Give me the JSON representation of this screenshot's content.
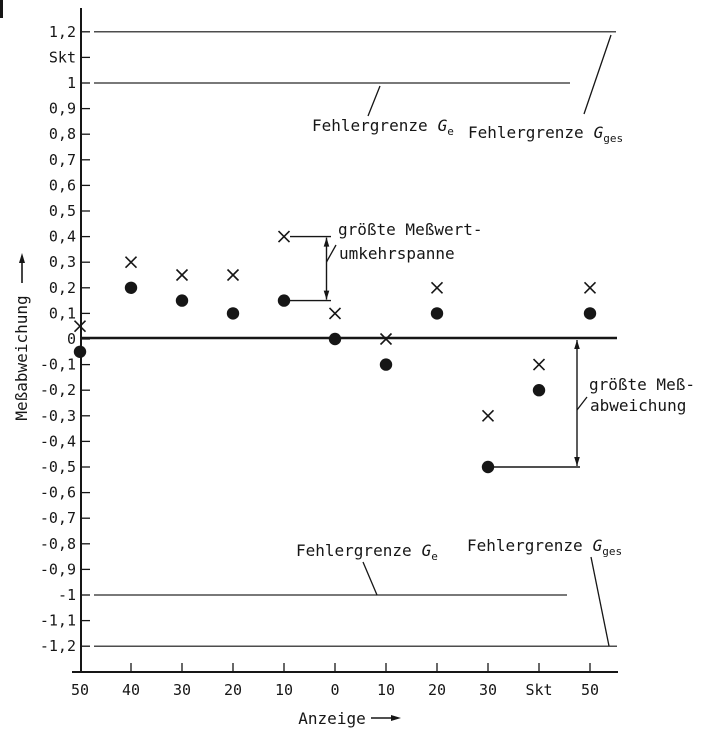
{
  "figure": {
    "background": "#ffffff",
    "ink": "#161616",
    "thin_line": "#4d4d4d"
  },
  "chart_data": {
    "type": "scatter",
    "title": "",
    "xlabel": "Anzeige",
    "ylabel": "Meßabweichung",
    "scale_unit": "Skt",
    "x_categories": [
      "50",
      "40",
      "30",
      "20",
      "10",
      "0",
      "10",
      "20",
      "30",
      "Skt",
      "50"
    ],
    "ylim": [
      -1.2,
      1.2
    ],
    "grid": false,
    "y_ticks": [
      {
        "v": 1.2,
        "label": "1,2"
      },
      {
        "v": 1.1,
        "label": "Skt"
      },
      {
        "v": 1.0,
        "label": "1"
      },
      {
        "v": 0.9,
        "label": "0,9"
      },
      {
        "v": 0.8,
        "label": "0,8"
      },
      {
        "v": 0.7,
        "label": "0,7"
      },
      {
        "v": 0.6,
        "label": "0,6"
      },
      {
        "v": 0.5,
        "label": "0,5"
      },
      {
        "v": 0.4,
        "label": "0,4"
      },
      {
        "v": 0.3,
        "label": "0,3"
      },
      {
        "v": 0.2,
        "label": "0,2"
      },
      {
        "v": 0.1,
        "label": "0,1"
      },
      {
        "v": 0.0,
        "label": "0"
      },
      {
        "v": -0.1,
        "label": "-0,1"
      },
      {
        "v": -0.2,
        "label": "-0,2"
      },
      {
        "v": -0.3,
        "label": "-0,3"
      },
      {
        "v": -0.4,
        "label": "-0,4"
      },
      {
        "v": -0.5,
        "label": "-0,5"
      },
      {
        "v": -0.6,
        "label": "-0,6"
      },
      {
        "v": -0.7,
        "label": "-0,7"
      },
      {
        "v": -0.8,
        "label": "-0,8"
      },
      {
        "v": -0.9,
        "label": "-0,9"
      },
      {
        "v": -1.0,
        "label": "-1"
      },
      {
        "v": -1.1,
        "label": "-1,1"
      },
      {
        "v": -1.2,
        "label": "-1,2"
      }
    ],
    "series": [
      {
        "marker": "x",
        "values": [
          0.05,
          0.3,
          0.25,
          0.25,
          0.4,
          0.1,
          0.0,
          0.2,
          -0.3,
          -0.1,
          0.2
        ]
      },
      {
        "marker": "dot",
        "values": [
          -0.05,
          0.2,
          0.15,
          0.1,
          0.15,
          0.0,
          -0.1,
          0.1,
          -0.5,
          -0.2,
          0.1
        ]
      }
    ],
    "zero_line": 0,
    "limit_lines": [
      {
        "value": 1.2,
        "text": "Fehlergrenze",
        "sym": "G",
        "sub": "ges"
      },
      {
        "value": 1.0,
        "text": "Fehlergrenze",
        "sym": "G",
        "sub": "e"
      },
      {
        "value": -1.0,
        "text": "Fehlergrenze",
        "sym": "G",
        "sub": "e"
      },
      {
        "value": -1.2,
        "text": "Fehlergrenze",
        "sym": "G",
        "sub": "ges"
      }
    ],
    "annotations": [
      {
        "lines": [
          "größte Meßwert-",
          "umkehrspanne"
        ],
        "category_index": 4,
        "from": 0.4,
        "to": 0.15
      },
      {
        "lines": [
          "größte Meß-",
          "abweichung"
        ],
        "category_index": 8,
        "from": 0.0,
        "to": -0.5
      }
    ]
  }
}
